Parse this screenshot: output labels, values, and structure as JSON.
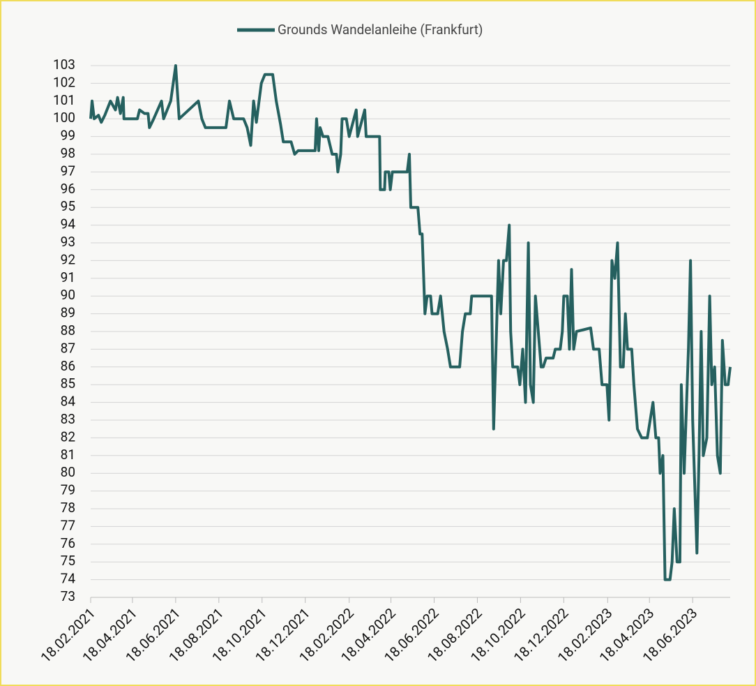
{
  "chart_data": {
    "type": "line",
    "x": [
      "18.02.2021",
      "20.02.2021",
      "23.02.2021",
      "01.03.2021",
      "05.03.2021",
      "10.03.2021",
      "18.03.2021",
      "25.03.2021",
      "28.03.2021",
      "01.04.2021",
      "05.04.2021",
      "06.04.2021",
      "25.04.2021",
      "28.04.2021",
      "05.05.2021",
      "10.05.2021",
      "12.05.2021",
      "18.05.2021",
      "29.05.2021",
      "01.06.2021",
      "11.06.2021",
      "18.06.2021",
      "23.06.2021",
      "20.07.2021",
      "25.07.2021",
      "30.07.2021",
      "28.08.2021",
      "02.09.2021",
      "08.09.2021",
      "22.09.2021",
      "27.09.2021",
      "02.10.2021",
      "06.10.2021",
      "10.10.2021",
      "17.10.2021",
      "22.10.2021",
      "02.11.2021",
      "07.11.2021",
      "13.11.2021",
      "17.11.2021",
      "28.11.2021",
      "03.12.2021",
      "08.12.2021",
      "01.01.2022",
      "03.01.2022",
      "06.01.2022",
      "08.01.2022",
      "12.01.2022",
      "19.01.2022",
      "25.01.2022",
      "31.01.2022",
      "02.02.2022",
      "06.02.2022",
      "08.02.2022",
      "14.02.2022",
      "18.02.2022",
      "28.02.2022",
      "02.03.2022",
      "12.03.2022",
      "14.03.2022",
      "02.04.2022",
      "03.04.2022",
      "09.04.2022",
      "10.04.2022",
      "15.04.2022",
      "17.04.2022",
      "20.04.2022",
      "11.05.2022",
      "14.05.2022",
      "16.05.2022",
      "26.05.2022",
      "29.05.2022",
      "01.06.2022",
      "05.06.2022",
      "08.06.2022",
      "13.06.2022",
      "15.06.2022",
      "23.06.2022",
      "27.06.2022",
      "02.07.2022",
      "07.07.2022",
      "11.07.2022",
      "24.07.2022",
      "28.07.2022",
      "01.08.2022",
      "08.08.2022",
      "10.08.2022",
      "07.09.2022",
      "10.09.2022",
      "14.09.2022",
      "17.09.2022",
      "20.09.2022",
      "24.09.2022",
      "28.09.2022",
      "02.10.2022",
      "04.10.2022",
      "07.10.2022",
      "14.10.2022",
      "17.10.2022",
      "21.10.2022",
      "25.10.2022",
      "29.10.2022",
      "01.11.2022",
      "05.11.2022",
      "08.11.2022",
      "16.11.2022",
      "19.11.2022",
      "23.11.2022",
      "03.12.2022",
      "06.12.2022",
      "13.12.2022",
      "16.12.2022",
      "18.12.2022",
      "23.12.2022",
      "26.12.2022",
      "29.12.2022",
      "01.01.2023",
      "05.01.2023",
      "25.01.2023",
      "29.01.2023",
      "06.02.2023",
      "10.02.2023",
      "17.02.2023",
      "20.02.2023",
      "24.02.2023",
      "28.02.2023",
      "04.03.2023",
      "08.03.2023",
      "12.03.2023",
      "15.03.2023",
      "18.03.2023",
      "24.03.2023",
      "27.03.2023",
      "01.04.2023",
      "07.04.2023",
      "15.04.2023",
      "23.04.2023",
      "27.04.2023",
      "01.05.2023",
      "03.05.2023",
      "07.05.2023",
      "10.05.2023",
      "17.05.2023",
      "20.05.2023",
      "23.05.2023",
      "27.05.2023",
      "31.05.2023",
      "02.06.2023",
      "06.06.2023",
      "12.06.2023",
      "15.06.2023",
      "18.06.2023",
      "24.06.2023",
      "27.06.2023",
      "30.06.2023",
      "03.07.2023",
      "08.07.2023",
      "12.07.2023",
      "15.07.2023",
      "19.07.2023",
      "23.07.2023",
      "27.07.2023",
      "30.07.2023",
      "03.08.2023",
      "07.08.2023",
      "10.08.2023"
    ],
    "series": [
      {
        "name": "Grounds Wandelanleihe (Frankfurt)",
        "color": "#25605f",
        "values": [
          100,
          101,
          100,
          100.2,
          99.8,
          100.2,
          101,
          100.5,
          101.2,
          100.3,
          101.2,
          100,
          100,
          100.5,
          100.3,
          100.3,
          99.5,
          100,
          101,
          100,
          101,
          103,
          100,
          101,
          100,
          99.5,
          99.5,
          101,
          100,
          100,
          99.5,
          98.5,
          101,
          99.8,
          102,
          102.5,
          102.5,
          101,
          99.7,
          98.7,
          98.7,
          98,
          98.2,
          98.2,
          100,
          98.2,
          99.5,
          99,
          99,
          98,
          98,
          97,
          98,
          100,
          100,
          99,
          100.5,
          99,
          100.5,
          99,
          99,
          96,
          96,
          97,
          97,
          96,
          97,
          97,
          98,
          95,
          95,
          93.5,
          93.5,
          89,
          90,
          90,
          89,
          89,
          90,
          88,
          87,
          86,
          86,
          88,
          89,
          89,
          90,
          90,
          82.5,
          88,
          92,
          89,
          92,
          92,
          94,
          88,
          86,
          86,
          85,
          87,
          84,
          93,
          85,
          84,
          90,
          86,
          86,
          86.5,
          86.5,
          87,
          87,
          88,
          90,
          90,
          87,
          91.5,
          87,
          88,
          88.2,
          87,
          87,
          85,
          85,
          83,
          92,
          91,
          93,
          86,
          86,
          89,
          87,
          87,
          85,
          82.5,
          82,
          82,
          84,
          82,
          82,
          80,
          81,
          74,
          74,
          75,
          78,
          75,
          75,
          85,
          80,
          87,
          92,
          83,
          75.5,
          81,
          88,
          81,
          82,
          90,
          85,
          86,
          81,
          80,
          87.5,
          85,
          85,
          86
        ]
      }
    ],
    "xlim": [
      "18.02.2021",
      "10.08.2023"
    ],
    "xticks": [
      "18.02.2021",
      "18.04.2021",
      "18.06.2021",
      "18.08.2021",
      "18.10.2021",
      "18.12.2021",
      "18.02.2022",
      "18.04.2022",
      "18.06.2022",
      "18.08.2022",
      "18.10.2022",
      "18.12.2022",
      "18.02.2023",
      "18.04.2023",
      "18.06.2023"
    ],
    "ylim": [
      73,
      103
    ],
    "yticks": [
      73,
      74,
      75,
      76,
      77,
      78,
      79,
      80,
      81,
      82,
      83,
      84,
      85,
      86,
      87,
      88,
      89,
      90,
      91,
      92,
      93,
      94,
      95,
      96,
      97,
      98,
      99,
      100,
      101,
      102,
      103
    ],
    "grid": true
  }
}
